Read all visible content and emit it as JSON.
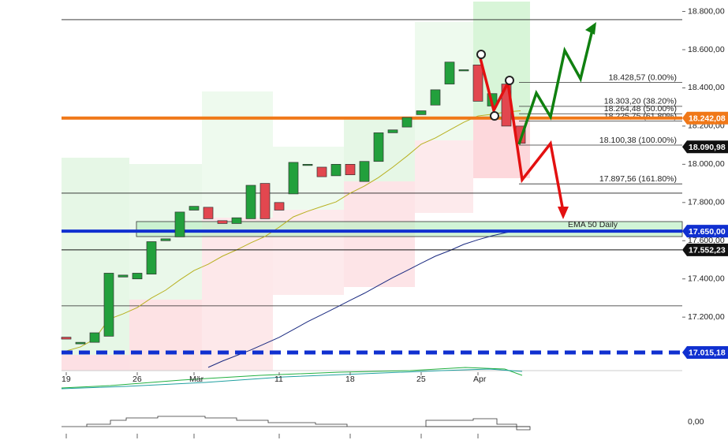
{
  "chart_data": {
    "type": "candlestick",
    "categories": [
      "19",
      null,
      null,
      null,
      null,
      "26",
      null,
      null,
      null,
      "Mär",
      null,
      null,
      null,
      null,
      null,
      "11",
      null,
      null,
      null,
      null,
      "18",
      null,
      null,
      null,
      null,
      "25",
      null,
      null,
      null,
      "Apr",
      null,
      null,
      null
    ],
    "open": [
      17095,
      17060,
      17068,
      17100,
      17410,
      17400,
      17425,
      17600,
      17620,
      17760,
      17775,
      17705,
      17690,
      17715,
      17900,
      17800,
      17845,
      17995,
      17985,
      17940,
      18000,
      17910,
      18015,
      18165,
      18195,
      18260,
      18310,
      18420,
      18492,
      18520,
      18305,
      18420,
      18200
    ],
    "close": [
      17085,
      17068,
      17118,
      17430,
      17420,
      17430,
      17595,
      17610,
      17750,
      17780,
      17715,
      17690,
      17720,
      17890,
      17715,
      17760,
      18010,
      18000,
      17935,
      18000,
      17945,
      18015,
      18165,
      18180,
      18245,
      18280,
      18390,
      18535,
      18495,
      18330,
      18370,
      18200,
      18110
    ],
    "up_color": "#22a03c",
    "down_color": "#e2474f",
    "series": [
      {
        "color": "#b8b020",
        "values": [
          17023,
          17044,
          17085,
          17189,
          17217,
          17250,
          17300,
          17341,
          17395,
          17444,
          17477,
          17519,
          17552,
          17589,
          17622,
          17671,
          17725,
          17754,
          17779,
          17803,
          17849,
          17886,
          17931,
          17985,
          18043,
          18105,
          18138,
          18179,
          18220,
          18253,
          18262,
          18274,
          18280
        ]
      },
      {
        "color": "#1a2a80",
        "values": [
          null,
          null,
          null,
          null,
          null,
          null,
          null,
          null,
          null,
          null,
          16937,
          16970,
          16999,
          17028,
          17061,
          17094,
          17135,
          17176,
          17213,
          17250,
          17288,
          17325,
          17366,
          17407,
          17444,
          17482,
          17519,
          17548,
          17581,
          17605,
          17626,
          17643,
          17655
        ]
      }
    ],
    "ylim": [
      16920,
      18860
    ],
    "yticks": [
      {
        "value": 17200,
        "label": "17.200,00"
      },
      {
        "value": 17400,
        "label": "17.400,00"
      },
      {
        "value": 17600,
        "label": "17.600,00"
      },
      {
        "value": 17800,
        "label": "17.800,00"
      },
      {
        "value": 18000,
        "label": "18.000,00"
      },
      {
        "value": 18200,
        "label": "18.200,00"
      },
      {
        "value": 18400,
        "label": "18.400,00"
      },
      {
        "value": 18600,
        "label": "18.600,00"
      },
      {
        "value": 18800,
        "label": "18.800,00"
      }
    ],
    "levels": [
      18757,
      17849,
      17259
    ],
    "fib_levels": [
      {
        "value": 18428.57,
        "label": "18.428,57 (0.00%)"
      },
      {
        "value": 18303.2,
        "label": "18.303,20 (38.20%)"
      },
      {
        "value": 18264.48,
        "label": "18.264,48 (50.00%)"
      },
      {
        "value": 18225.75,
        "label": "18.225,75 (61.80%)"
      },
      {
        "value": 18100.38,
        "label": "18.100,38 (100.00%)"
      },
      {
        "value": 17897.56,
        "label": "17.897,56 (161.80%)"
      }
    ],
    "price_tags": [
      {
        "value": 18242.08,
        "label": "18.242,08",
        "color": "#f07818",
        "line": "solid"
      },
      {
        "value": 18090.98,
        "label": "18.090,98",
        "color": "#111111",
        "line": "none"
      },
      {
        "value": 17650.0,
        "label": "17.650,00",
        "color": "#1030d0",
        "line": "solid"
      },
      {
        "value": 17552.23,
        "label": "17.552,23",
        "color": "#111111",
        "line": "thin"
      },
      {
        "value": 17015.18,
        "label": "17.015,18",
        "color": "#1030d0",
        "line": "dashed"
      }
    ],
    "annotation": "EMA 50 Daily",
    "indicator_label": "0,00"
  }
}
